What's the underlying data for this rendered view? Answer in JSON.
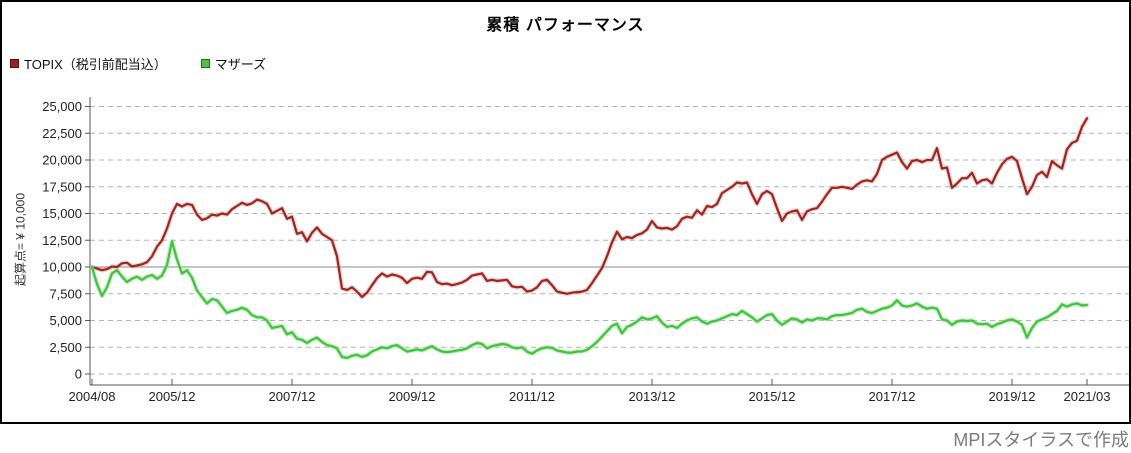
{
  "title": "累積 パフォーマンス",
  "legend": [
    {
      "label": "TOPIX（税引前配当込）",
      "color": "#a02020"
    },
    {
      "label": "マザーズ",
      "color": "#4cc43c"
    }
  ],
  "footer": "MPIスタイラスで作成",
  "colors": {
    "topix_line": "#a02420",
    "topix_glow": "rgba(205,125,115,0.35)",
    "mothers_line": "#3fc43f",
    "mothers_glow": "rgba(150,225,140,0.55)",
    "gridline": "#b3b3b3",
    "baseline": "#888888",
    "axis": "#555555",
    "tick_label": "#222222"
  },
  "chart_data": {
    "type": "line",
    "title": "累積 パフォーマンス",
    "ylabel": "起算点= ¥ 10,000",
    "ylim": [
      0,
      25000
    ],
    "grid": "horizontal-dashed",
    "baseline_value": 10000,
    "legend_position": "top-left",
    "x_unit": "month",
    "x_start": "2004/08",
    "x_end": "2021/03",
    "y_ticks": [
      {
        "label": "25,000",
        "value": 25000
      },
      {
        "label": "22,500",
        "value": 22500
      },
      {
        "label": "20,000",
        "value": 20000
      },
      {
        "label": "17,500",
        "value": 17500
      },
      {
        "label": "15,000",
        "value": 15000
      },
      {
        "label": "12,500",
        "value": 12500
      },
      {
        "label": "10,000",
        "value": 10000
      },
      {
        "label": "7,500",
        "value": 7500
      },
      {
        "label": "5,000",
        "value": 5000
      },
      {
        "label": "2,500",
        "value": 2500
      },
      {
        "label": "0",
        "value": 0
      }
    ],
    "x_ticks": [
      {
        "label": "2004/08",
        "month": 0
      },
      {
        "label": "2005/12",
        "month": 16
      },
      {
        "label": "2007/12",
        "month": 40
      },
      {
        "label": "2009/12",
        "month": 64
      },
      {
        "label": "2011/12",
        "month": 88
      },
      {
        "label": "2013/12",
        "month": 112
      },
      {
        "label": "2015/12",
        "month": 136
      },
      {
        "label": "2017/12",
        "month": 160
      },
      {
        "label": "2019/12",
        "month": 184
      },
      {
        "label": "2021/03",
        "month": 199
      }
    ],
    "series": [
      {
        "name": "TOPIX（税引前配当込）",
        "color": "#a02420",
        "values": [
          10000,
          9850,
          9700,
          9800,
          10050,
          10000,
          10350,
          10400,
          10050,
          10150,
          10250,
          10450,
          11000,
          11900,
          12500,
          13600,
          15000,
          15900,
          15650,
          15900,
          15800,
          14900,
          14400,
          14550,
          14900,
          14800,
          15000,
          14900,
          15400,
          15700,
          16000,
          15800,
          15950,
          16300,
          16150,
          15900,
          15000,
          15250,
          15500,
          14500,
          14700,
          13100,
          13250,
          12400,
          13200,
          13700,
          13100,
          12800,
          12500,
          11000,
          8000,
          7850,
          8100,
          7700,
          7200,
          7600,
          8300,
          8950,
          9400,
          9100,
          9300,
          9200,
          9000,
          8500,
          8900,
          9000,
          8900,
          9550,
          9500,
          8600,
          8400,
          8450,
          8300,
          8400,
          8550,
          8800,
          9200,
          9300,
          9400,
          8700,
          8800,
          8700,
          8750,
          8800,
          8200,
          8100,
          8150,
          7700,
          7800,
          8100,
          8700,
          8800,
          8300,
          7700,
          7600,
          7500,
          7600,
          7650,
          7700,
          7850,
          8500,
          9200,
          9900,
          11000,
          12300,
          13300,
          12600,
          12800,
          12700,
          13000,
          13150,
          13500,
          14300,
          13700,
          13600,
          13650,
          13500,
          13800,
          14500,
          14700,
          14600,
          15300,
          14900,
          15700,
          15600,
          15900,
          16900,
          17200,
          17500,
          17900,
          17800,
          17900,
          16800,
          15900,
          16800,
          17100,
          16800,
          15500,
          14300,
          15000,
          15200,
          15300,
          14400,
          15200,
          15400,
          15500,
          16100,
          16800,
          17400,
          17400,
          17500,
          17400,
          17300,
          17700,
          18000,
          18100,
          18000,
          18700,
          20000,
          20300,
          20500,
          20700,
          19800,
          19200,
          19900,
          20000,
          19800,
          20000,
          20000,
          21100,
          19200,
          19300,
          17400,
          17800,
          18300,
          18300,
          18800,
          17800,
          18100,
          18200,
          17800,
          18800,
          19600,
          20100,
          20300,
          19900,
          18300,
          16800,
          17500,
          18600,
          18900,
          18400,
          19900,
          19500,
          19200,
          21000,
          21600,
          21800,
          23100,
          23900
        ]
      },
      {
        "name": "マザーズ",
        "color": "#3fc43f",
        "values": [
          10000,
          8400,
          7300,
          8100,
          9400,
          9700,
          9100,
          8600,
          8900,
          9100,
          8800,
          9100,
          9250,
          8900,
          9200,
          10200,
          12400,
          10700,
          9400,
          9700,
          9000,
          7800,
          7200,
          6600,
          7000,
          6900,
          6300,
          5700,
          5900,
          6000,
          6200,
          6000,
          5500,
          5300,
          5300,
          5000,
          4300,
          4400,
          4500,
          3700,
          3900,
          3300,
          3200,
          2900,
          3200,
          3400,
          3000,
          2700,
          2600,
          2400,
          1600,
          1500,
          1700,
          1800,
          1600,
          1750,
          2100,
          2300,
          2500,
          2400,
          2600,
          2700,
          2400,
          2100,
          2200,
          2300,
          2200,
          2400,
          2600,
          2300,
          2100,
          2050,
          2100,
          2200,
          2250,
          2400,
          2700,
          2900,
          2800,
          2400,
          2600,
          2700,
          2800,
          2750,
          2500,
          2400,
          2500,
          2100,
          1900,
          2200,
          2400,
          2500,
          2450,
          2200,
          2100,
          2000,
          2000,
          2100,
          2100,
          2250,
          2600,
          3000,
          3500,
          4000,
          4500,
          4700,
          3800,
          4400,
          4600,
          4900,
          5300,
          5100,
          5200,
          5400,
          4800,
          4400,
          4500,
          4300,
          4700,
          5000,
          5200,
          5300,
          4900,
          4700,
          4900,
          5000,
          5200,
          5400,
          5600,
          5500,
          5900,
          5600,
          5300,
          4900,
          5200,
          5500,
          5600,
          5000,
          4600,
          4900,
          5200,
          5100,
          4800,
          5100,
          5000,
          5200,
          5200,
          5100,
          5400,
          5500,
          5500,
          5600,
          5700,
          6000,
          6100,
          5800,
          5700,
          5900,
          6100,
          6200,
          6400,
          6900,
          6400,
          6300,
          6400,
          6600,
          6300,
          6100,
          6200,
          6100,
          5100,
          5000,
          4600,
          4900,
          5000,
          4950,
          5000,
          4700,
          4650,
          4700,
          4400,
          4650,
          4800,
          5000,
          5100,
          4900,
          4600,
          3400,
          4300,
          4900,
          5100,
          5300,
          5600,
          5900,
          6500,
          6300,
          6500,
          6600,
          6400,
          6450
        ]
      }
    ]
  }
}
